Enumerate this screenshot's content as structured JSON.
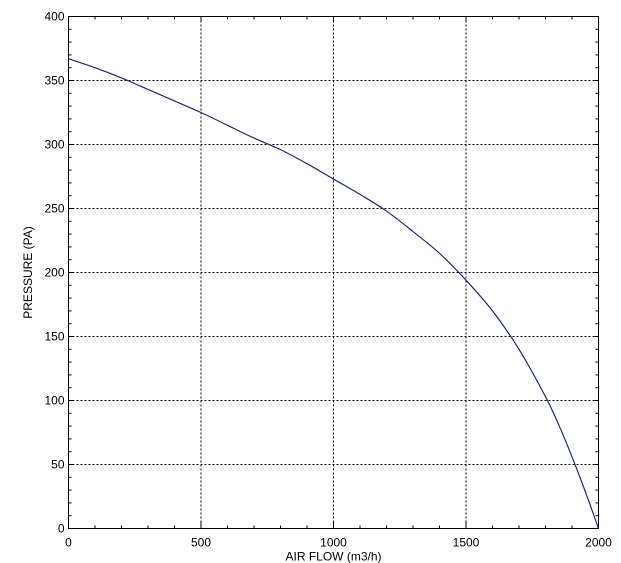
{
  "chart_data": {
    "type": "line",
    "title": "",
    "xlabel": "AIR FLOW (m3/h)",
    "ylabel": "PRESSURE (PA)",
    "xlim": [
      0,
      2000
    ],
    "ylim": [
      0,
      400
    ],
    "x_ticks": [
      0,
      500,
      1000,
      1500,
      2000
    ],
    "y_ticks": [
      0,
      50,
      100,
      150,
      200,
      250,
      300,
      350,
      400
    ],
    "x_tick_labels": [
      "0",
      "500",
      "1000",
      "1500",
      "2000"
    ],
    "y_tick_labels": [
      "0",
      "50",
      "100",
      "150",
      "200",
      "250",
      "300",
      "350",
      "400"
    ],
    "grid": true,
    "grid_style": "dotted",
    "legend": "none",
    "series": [
      {
        "color": "#1f2a6e",
        "x": [
          0,
          100,
          200,
          300,
          400,
          500,
          600,
          700,
          800,
          900,
          1000,
          1100,
          1200,
          1300,
          1400,
          1500,
          1600,
          1700,
          1800,
          1850,
          1900,
          1950,
          2000
        ],
        "y": [
          367,
          360,
          352,
          343,
          334,
          325,
          315,
          305,
          296,
          285,
          273,
          261,
          248,
          232,
          215,
          194,
          170,
          140,
          103,
          81,
          56,
          29,
          0
        ]
      }
    ]
  }
}
